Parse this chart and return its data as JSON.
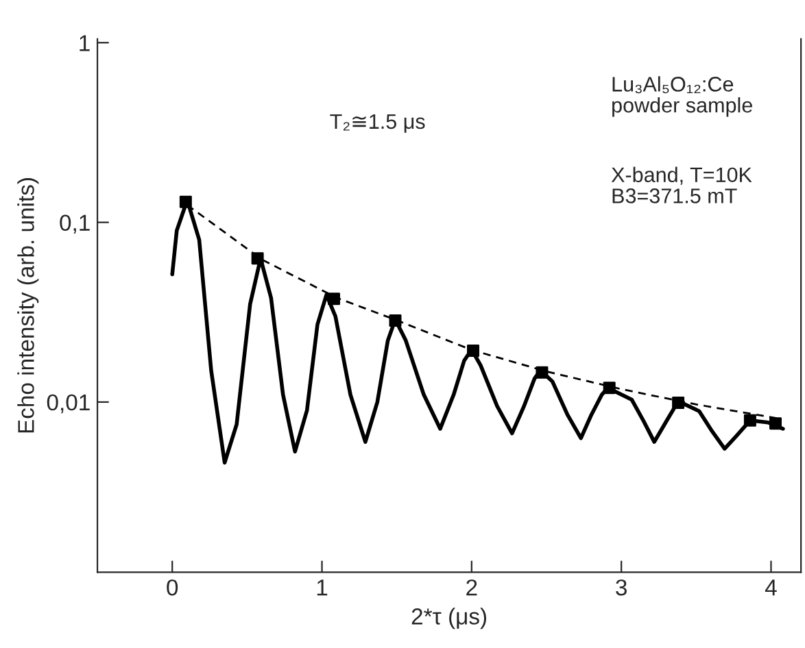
{
  "chart_data": {
    "type": "line",
    "xlabel": "2*τ (μs)",
    "ylabel": "Echo intensity (arb. units)",
    "annotations": [
      "T₂≅1.5 μs",
      "Lu₃Al₅O₁₂:Ce\npowder sample",
      "X-band, T=10K\nB3=371.5 mT"
    ],
    "log": "y",
    "xlim": [
      -0.5,
      4.2
    ],
    "ylim": [
      0.00113,
      1.05
    ],
    "xticks": [
      0,
      1,
      2,
      3,
      4
    ],
    "yticks": [
      {
        "value": 0.01,
        "label": "0,01"
      },
      {
        "value": 0.1,
        "label": "0,1"
      },
      {
        "value": 1,
        "label": "1"
      }
    ],
    "grid": false,
    "legend": false,
    "series": [
      {
        "color": "#000000",
        "line_style": "solid",
        "marker": "none",
        "x": [
          0,
          0.03,
          0.1,
          0.18,
          0.26,
          0.35,
          0.43,
          0.52,
          0.59,
          0.66,
          0.74,
          0.82,
          0.9,
          0.97,
          1.03,
          1.09,
          1.19,
          1.29,
          1.37,
          1.44,
          1.49,
          1.56,
          1.68,
          1.79,
          1.88,
          1.95,
          2.0,
          2.06,
          2.17,
          2.27,
          2.35,
          2.42,
          2.46,
          2.54,
          2.64,
          2.73,
          2.8,
          2.87,
          2.91,
          3.07,
          3.15,
          3.22,
          3.3,
          3.38,
          3.52,
          3.6,
          3.69,
          3.77,
          3.86,
          3.98,
          4.08
        ],
        "values": [
          0.0514,
          0.09,
          0.133,
          0.08,
          0.015,
          0.0046,
          0.0075,
          0.035,
          0.063,
          0.038,
          0.011,
          0.0053,
          0.009,
          0.027,
          0.0395,
          0.03,
          0.011,
          0.006,
          0.01,
          0.022,
          0.0288,
          0.022,
          0.011,
          0.0071,
          0.011,
          0.017,
          0.0196,
          0.016,
          0.0095,
          0.0067,
          0.0095,
          0.0135,
          0.015,
          0.013,
          0.0085,
          0.0063,
          0.0085,
          0.011,
          0.012,
          0.0103,
          0.0078,
          0.006,
          0.0078,
          0.0101,
          0.0089,
          0.007,
          0.0055,
          0.0065,
          0.0079,
          0.0077,
          0.0071
        ]
      },
      {
        "color": "#000000",
        "line_style": "dashed",
        "marker": "none",
        "x": [
          0.1,
          0.6,
          1.1,
          1.5,
          2.0,
          2.5,
          3.0,
          3.5,
          4.05
        ],
        "values": [
          0.125,
          0.062,
          0.038,
          0.0285,
          0.0195,
          0.0148,
          0.0118,
          0.0097,
          0.0081
        ]
      },
      {
        "type": "scatter",
        "color": "#000000",
        "marker": "square",
        "x": [
          0.09,
          0.57,
          1.08,
          1.49,
          2.01,
          2.47,
          2.92,
          3.38,
          3.86,
          4.03
        ],
        "values": [
          0.13,
          0.063,
          0.0375,
          0.0284,
          0.0193,
          0.0146,
          0.012,
          0.0099,
          0.0079,
          0.0076
        ]
      }
    ]
  }
}
